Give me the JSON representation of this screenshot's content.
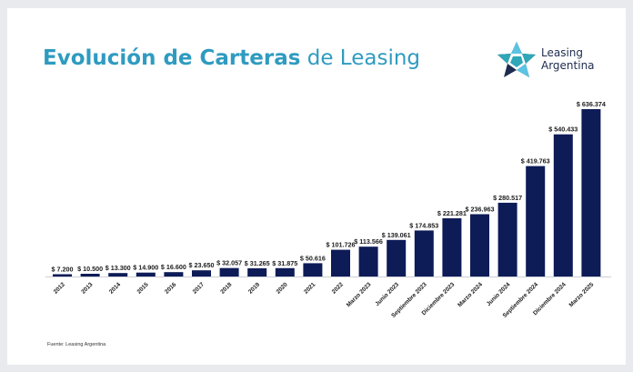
{
  "header": {
    "title_bold": "Evolución de Carteras",
    "title_light": " de Leasing"
  },
  "logo": {
    "line1": "Leasing",
    "line2": "Argentina",
    "icon": "star-logo-icon",
    "colors": {
      "navy": "#1d2b4f",
      "teal": "#2fa7b8",
      "light_blue": "#5bc3e3"
    }
  },
  "footer": {
    "source": "Fuente: Leasing Argentina"
  },
  "colors": {
    "title": "#2f9bc0",
    "bar": "#0d1b57"
  },
  "chart_data": {
    "type": "bar",
    "title": "Evolución de Carteras de Leasing",
    "xlabel": "",
    "ylabel": "",
    "grid": false,
    "legend": "none",
    "ylim": [
      0,
      700000
    ],
    "categories": [
      "2012",
      "2013",
      "2014",
      "2015",
      "2016",
      "2017",
      "2018",
      "2019",
      "2020",
      "2021",
      "2022",
      "Marzo 2023",
      "Junio 2023",
      "Septiembre 2023",
      "Diciembre 2023",
      "Marzo 2024",
      "Junio 2024",
      "Septiembre 2024",
      "Diciembre 2024",
      "Marzo 2025"
    ],
    "values": [
      7200,
      10500,
      13300,
      14900,
      16600,
      23650,
      32057,
      31265,
      31875,
      50616,
      101726,
      113566,
      139061,
      174853,
      221281,
      236963,
      280517,
      419763,
      540433,
      636374
    ],
    "data_labels": [
      "$ 7.200",
      "$ 10.500",
      "$ 13.300",
      "$ 14.900",
      "$ 16.600",
      "$ 23.650",
      "$ 32.057",
      "$ 31.265",
      "$ 31.875",
      "$ 50.616",
      "$ 101.726",
      "$ 113.566",
      "$ 139.061",
      "$ 174.853",
      "$ 221.281",
      "$ 236.963",
      "$ 280.517",
      "$ 419.763",
      "$ 540.433",
      "$ 636.374"
    ]
  }
}
